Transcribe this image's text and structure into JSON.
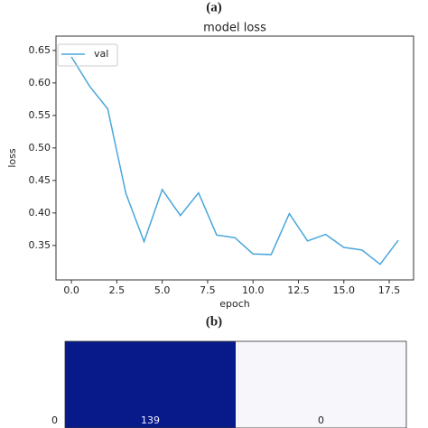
{
  "panel_a_label": "(a)",
  "panel_b_label": "(b)",
  "chart_data": [
    {
      "type": "line",
      "title": "model loss",
      "xlabel": "epoch",
      "ylabel": "loss",
      "x": [
        0,
        1,
        2,
        3,
        4,
        5,
        6,
        7,
        8,
        9,
        10,
        11,
        12,
        13,
        14,
        15,
        16,
        17,
        18
      ],
      "series": [
        {
          "name": "val",
          "color": "#4aa6dc",
          "values": [
            0.64,
            0.595,
            0.56,
            0.43,
            0.356,
            0.436,
            0.396,
            0.431,
            0.366,
            0.362,
            0.337,
            0.336,
            0.399,
            0.357,
            0.367,
            0.347,
            0.343,
            0.321,
            0.358
          ]
        }
      ],
      "xlim": [
        -0.85,
        18.84
      ],
      "ylim": [
        0.297,
        0.672
      ],
      "xticks": [
        {
          "value": 0,
          "label": "0.0"
        },
        2.5,
        {
          "value": 5,
          "label": "5.0"
        },
        7.5,
        {
          "value": 10,
          "label": "10.0"
        },
        12.5,
        {
          "value": 15,
          "label": "15.0"
        },
        17.5
      ],
      "yticks": [
        0.35,
        {
          "value": 0.4,
          "label": "0.40"
        },
        0.45,
        {
          "value": 0.5,
          "label": "0.50"
        },
        0.55,
        {
          "value": 0.6,
          "label": "0.60"
        },
        0.65
      ],
      "legend": "upper left"
    },
    {
      "type": "heatmap",
      "rows": [
        "0"
      ],
      "values": [
        [
          139,
          0
        ]
      ],
      "colors": [
        "#f7f7fb",
        "#08198a"
      ]
    }
  ]
}
